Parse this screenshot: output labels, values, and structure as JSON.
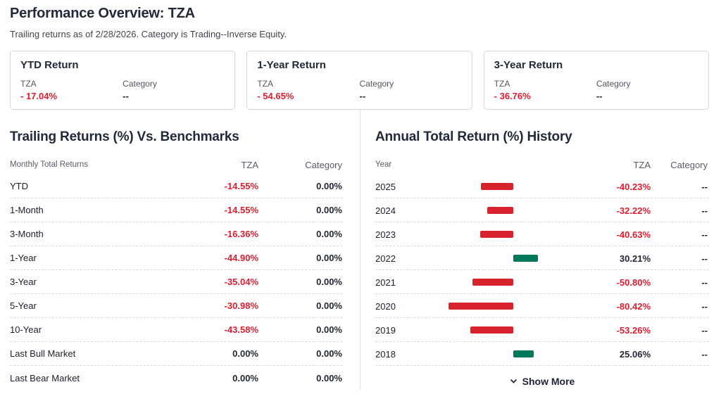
{
  "page": {
    "title": "Performance Overview: TZA",
    "subtitle": "Trailing returns as of 2/28/2026. Category is Trading--Inverse Equity."
  },
  "summary_cards": [
    {
      "title": "YTD Return",
      "fund_label": "TZA",
      "fund_value": "- 17.04%",
      "category_label": "Category",
      "category_value": "--"
    },
    {
      "title": "1-Year Return",
      "fund_label": "TZA",
      "fund_value": "- 54.65%",
      "category_label": "Category",
      "category_value": "--"
    },
    {
      "title": "3-Year Return",
      "fund_label": "TZA",
      "fund_value": "- 36.76%",
      "category_label": "Category",
      "category_value": "--"
    }
  ],
  "trailing_table": {
    "title": "Trailing Returns (%) Vs. Benchmarks",
    "columns": [
      "Monthly Total Returns",
      "TZA",
      "Category"
    ],
    "rows": [
      {
        "label": "YTD",
        "tza": "-14.55%",
        "category": "0.00%"
      },
      {
        "label": "1-Month",
        "tza": "-14.55%",
        "category": "0.00%"
      },
      {
        "label": "3-Month",
        "tza": "-16.36%",
        "category": "0.00%"
      },
      {
        "label": "1-Year",
        "tza": "-44.90%",
        "category": "0.00%"
      },
      {
        "label": "3-Year",
        "tza": "-35.04%",
        "category": "0.00%"
      },
      {
        "label": "5-Year",
        "tza": "-30.98%",
        "category": "0.00%"
      },
      {
        "label": "10-Year",
        "tza": "-43.58%",
        "category": "0.00%"
      },
      {
        "label": "Last Bull Market",
        "tza": "0.00%",
        "category": "0.00%"
      },
      {
        "label": "Last Bear Market",
        "tza": "0.00%",
        "category": "0.00%"
      }
    ]
  },
  "annual_history": {
    "title": "Annual Total Return (%) History",
    "columns": [
      "Year",
      "TZA",
      "Category"
    ],
    "rows": [
      {
        "year": "2025",
        "value": -40.23,
        "tza_display": "-40.23%",
        "category": "--"
      },
      {
        "year": "2024",
        "value": -32.22,
        "tza_display": "-32.22%",
        "category": "--"
      },
      {
        "year": "2023",
        "value": -40.63,
        "tza_display": "-40.63%",
        "category": "--"
      },
      {
        "year": "2022",
        "value": 30.21,
        "tza_display": "30.21%",
        "category": "--"
      },
      {
        "year": "2021",
        "value": -50.8,
        "tza_display": "-50.80%",
        "category": "--"
      },
      {
        "year": "2020",
        "value": -80.42,
        "tza_display": "-80.42%",
        "category": "--"
      },
      {
        "year": "2019",
        "value": -53.26,
        "tza_display": "-53.26%",
        "category": "--"
      },
      {
        "year": "2018",
        "value": 25.06,
        "tza_display": "25.06%",
        "category": "--"
      }
    ],
    "show_more_label": "Show More"
  },
  "chart_data": {
    "type": "bar",
    "orientation": "horizontal",
    "title": "Annual Total Return (%) History",
    "series_name": "TZA",
    "categories": [
      "2025",
      "2024",
      "2023",
      "2022",
      "2021",
      "2020",
      "2019",
      "2018"
    ],
    "values": [
      -40.23,
      -32.22,
      -40.63,
      30.21,
      -50.8,
      -80.42,
      -53.26,
      25.06
    ],
    "xlim": [
      -127,
      110
    ],
    "grid": false,
    "legend_position": "none"
  },
  "colors": {
    "negative_text": "#dc1e30",
    "negative_bar": "#d6232e",
    "positive_bar": "#00795b",
    "heading": "#222a38",
    "divider": "#d9dadd"
  }
}
